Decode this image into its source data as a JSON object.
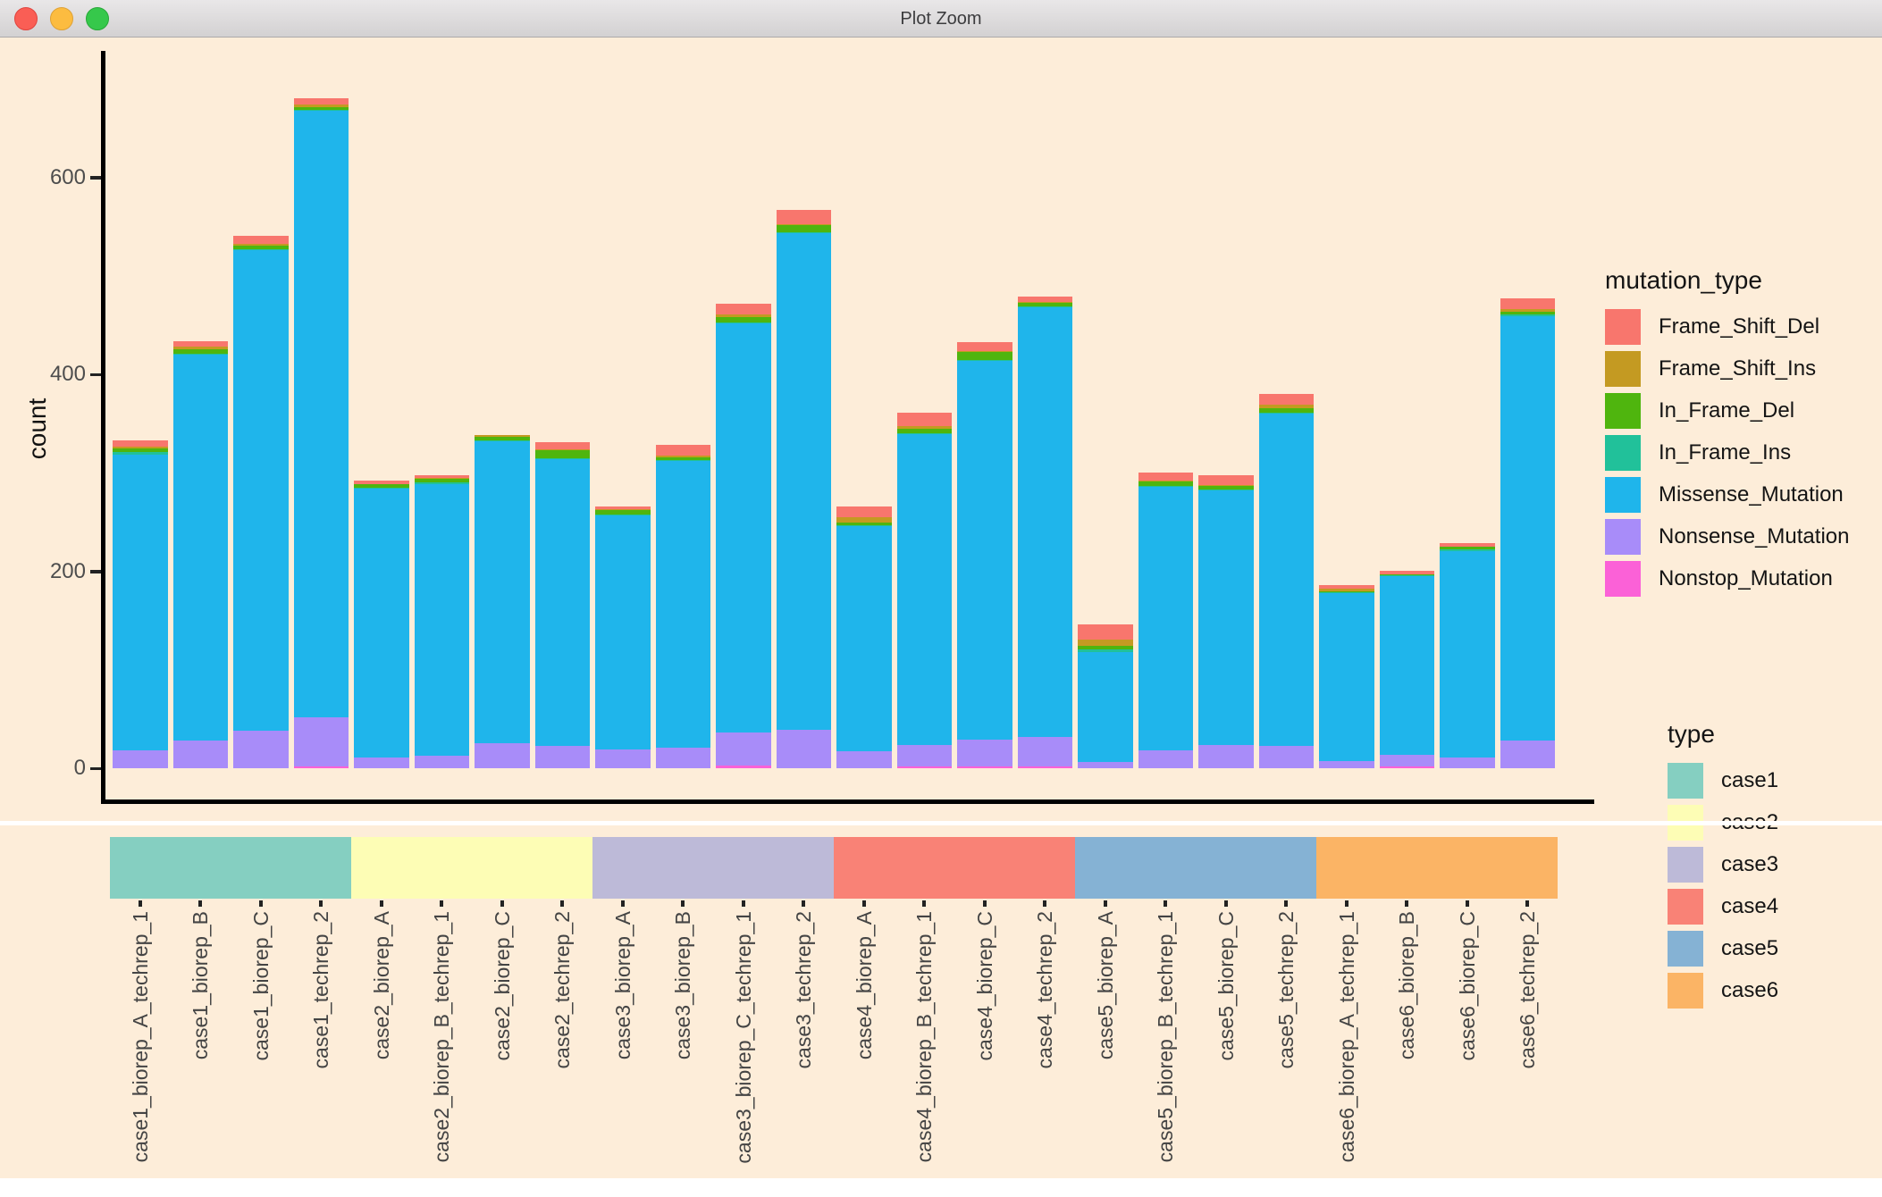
{
  "window": {
    "title": "Plot Zoom"
  },
  "colors": {
    "canvas_background": "#FDEDD9",
    "axis_text": "#4D4D4D",
    "separator": "#FFFFFF"
  },
  "chart_data": {
    "type": "bar",
    "stacked": true,
    "ylabel": "count",
    "yticks": [
      0,
      200,
      400,
      600
    ],
    "ylim": [
      0,
      728
    ],
    "grid": false,
    "stack_order_bottom_to_top": [
      "Nonstop_Mutation",
      "Nonsense_Mutation",
      "Missense_Mutation",
      "In_Frame_Ins",
      "In_Frame_Del",
      "Frame_Shift_Ins",
      "Frame_Shift_Del"
    ],
    "categories": [
      "case1_biorep_A_techrep_1",
      "case1_biorep_B",
      "case1_biorep_C",
      "case1_techrep_2",
      "case2_biorep_A",
      "case2_biorep_B_techrep_1",
      "case2_biorep_C",
      "case2_techrep_2",
      "case3_biorep_A",
      "case3_biorep_B",
      "case3_biorep_C_techrep_1",
      "case3_techrep_2",
      "case4_biorep_A",
      "case4_biorep_B_techrep_1",
      "case4_biorep_C",
      "case4_techrep_2",
      "case5_biorep_A",
      "case5_biorep_B_techrep_1",
      "case5_biorep_C",
      "case5_techrep_2",
      "case6_biorep_A_techrep_1",
      "case6_biorep_B",
      "case6_biorep_C",
      "case6_techrep_2"
    ],
    "series": [
      {
        "name": "Frame_Shift_Del",
        "color": "#F8766D",
        "values": [
          6,
          6,
          8,
          7,
          3,
          3,
          0,
          7,
          3,
          11,
          11,
          14,
          11,
          13,
          9,
          5,
          15,
          8,
          10,
          11,
          4,
          4,
          4,
          10
        ]
      },
      {
        "name": "Frame_Shift_Ins",
        "color": "#C49A22",
        "values": [
          2,
          2,
          2,
          2,
          0,
          1,
          2,
          1,
          1,
          2,
          3,
          1,
          5,
          3,
          1,
          1,
          7,
          1,
          1,
          3,
          2,
          0,
          0,
          3
        ]
      },
      {
        "name": "In_Frame_Del",
        "color": "#4FB50E",
        "values": [
          4,
          5,
          4,
          3,
          4,
          4,
          4,
          8,
          4,
          3,
          5,
          7,
          3,
          5,
          8,
          4,
          3,
          4,
          4,
          5,
          1,
          1,
          3,
          3
        ]
      },
      {
        "name": "In_Frame_Ins",
        "color": "#21C19A",
        "values": [
          2,
          1,
          1,
          1,
          1,
          1,
          1,
          1,
          1,
          1,
          1,
          1,
          1,
          1,
          1,
          1,
          3,
          1,
          1,
          1,
          1,
          1,
          1,
          2
        ]
      },
      {
        "name": "Missense_Mutation",
        "color": "#1FB5EB",
        "values": [
          301,
          392,
          488,
          616,
          273,
          276,
          307,
          291,
          238,
          291,
          416,
          505,
          229,
          315,
          385,
          436,
          112,
          268,
          258,
          337,
          171,
          181,
          210,
          431
        ]
      },
      {
        "name": "Nonsense_Mutation",
        "color": "#A88CF9",
        "values": [
          18,
          28,
          38,
          50,
          11,
          13,
          25,
          23,
          19,
          21,
          33,
          39,
          17,
          22,
          27,
          30,
          6,
          18,
          24,
          23,
          7,
          12,
          11,
          28
        ]
      },
      {
        "name": "Nonstop_Mutation",
        "color": "#FB61D7",
        "values": [
          0,
          0,
          0,
          2,
          0,
          0,
          0,
          0,
          0,
          0,
          3,
          0,
          0,
          2,
          2,
          2,
          0,
          0,
          0,
          0,
          0,
          2,
          0,
          0
        ]
      }
    ],
    "legend_mutation": {
      "title": "mutation_type",
      "entries": [
        {
          "label": "Frame_Shift_Del",
          "color": "#F8766D"
        },
        {
          "label": "Frame_Shift_Ins",
          "color": "#C49A22"
        },
        {
          "label": "In_Frame_Del",
          "color": "#4FB50E"
        },
        {
          "label": "In_Frame_Ins",
          "color": "#21C19A"
        },
        {
          "label": "Missense_Mutation",
          "color": "#1FB5EB"
        },
        {
          "label": "Nonsense_Mutation",
          "color": "#A88CF9"
        },
        {
          "label": "Nonstop_Mutation",
          "color": "#FB61D7"
        }
      ]
    },
    "legend_type": {
      "title": "type",
      "entries": [
        {
          "label": "case1",
          "color": "#85CFC1"
        },
        {
          "label": "case2",
          "color": "#FDFDB5"
        },
        {
          "label": "case3",
          "color": "#BDBAD8"
        },
        {
          "label": "case4",
          "color": "#F98276"
        },
        {
          "label": "case5",
          "color": "#85B2D4"
        },
        {
          "label": "case6",
          "color": "#FBB465"
        }
      ]
    },
    "groups": [
      {
        "name": "case1",
        "color": "#85CFC1",
        "bars": [
          "case1_biorep_A_techrep_1",
          "case1_biorep_B",
          "case1_biorep_C",
          "case1_techrep_2"
        ]
      },
      {
        "name": "case2",
        "color": "#FDFDB5",
        "bars": [
          "case2_biorep_A",
          "case2_biorep_B_techrep_1",
          "case2_biorep_C",
          "case2_techrep_2"
        ]
      },
      {
        "name": "case3",
        "color": "#BDBAD8",
        "bars": [
          "case3_biorep_A",
          "case3_biorep_B",
          "case3_biorep_C_techrep_1",
          "case3_techrep_2"
        ]
      },
      {
        "name": "case4",
        "color": "#F98276",
        "bars": [
          "case4_biorep_A",
          "case4_biorep_B_techrep_1",
          "case4_biorep_C",
          "case4_techrep_2"
        ]
      },
      {
        "name": "case5",
        "color": "#85B2D4",
        "bars": [
          "case5_biorep_A",
          "case5_biorep_B_techrep_1",
          "case5_biorep_C",
          "case5_techrep_2"
        ]
      },
      {
        "name": "case6",
        "color": "#FBB465",
        "bars": [
          "case6_biorep_A_techrep_1",
          "case6_biorep_B",
          "case6_biorep_C",
          "case6_techrep_2"
        ]
      }
    ]
  }
}
